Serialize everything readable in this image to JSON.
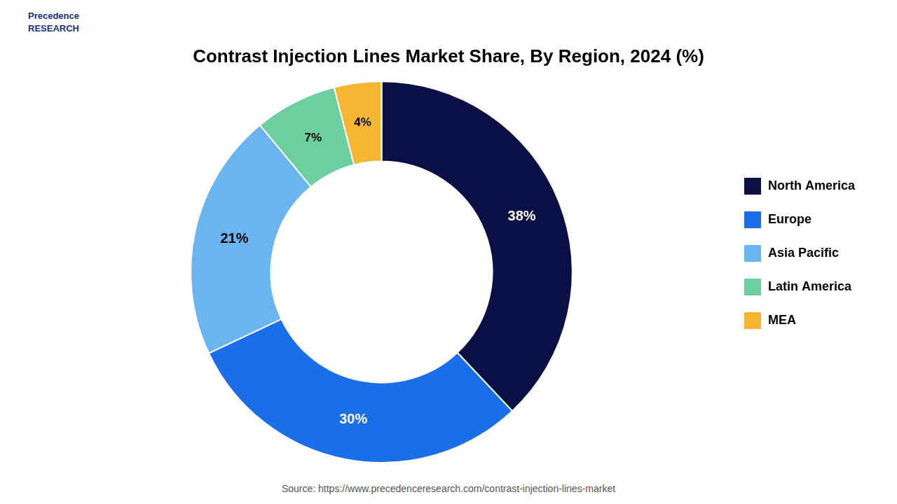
{
  "chart_data": {
    "type": "pie",
    "title": "Contrast Injection Lines Market Share, By Region, 2024 (%)",
    "categories": [
      "North America",
      "Europe",
      "Asia Pacific",
      "Latin America",
      "MEA"
    ],
    "values": [
      38,
      30,
      21,
      7,
      4
    ],
    "value_labels": [
      "38%",
      "30%",
      "21%",
      "7%",
      "4%"
    ],
    "colors": [
      "#0a1045",
      "#1a6fe8",
      "#6ab4f0",
      "#6dcea0",
      "#f5b731"
    ],
    "data_labels": true,
    "legend": "right",
    "annotations": [
      "Precedence\nRESEARCH",
      "Source: https://www.precedenceresearch.com/contrast-injection-lines-market"
    ]
  }
}
